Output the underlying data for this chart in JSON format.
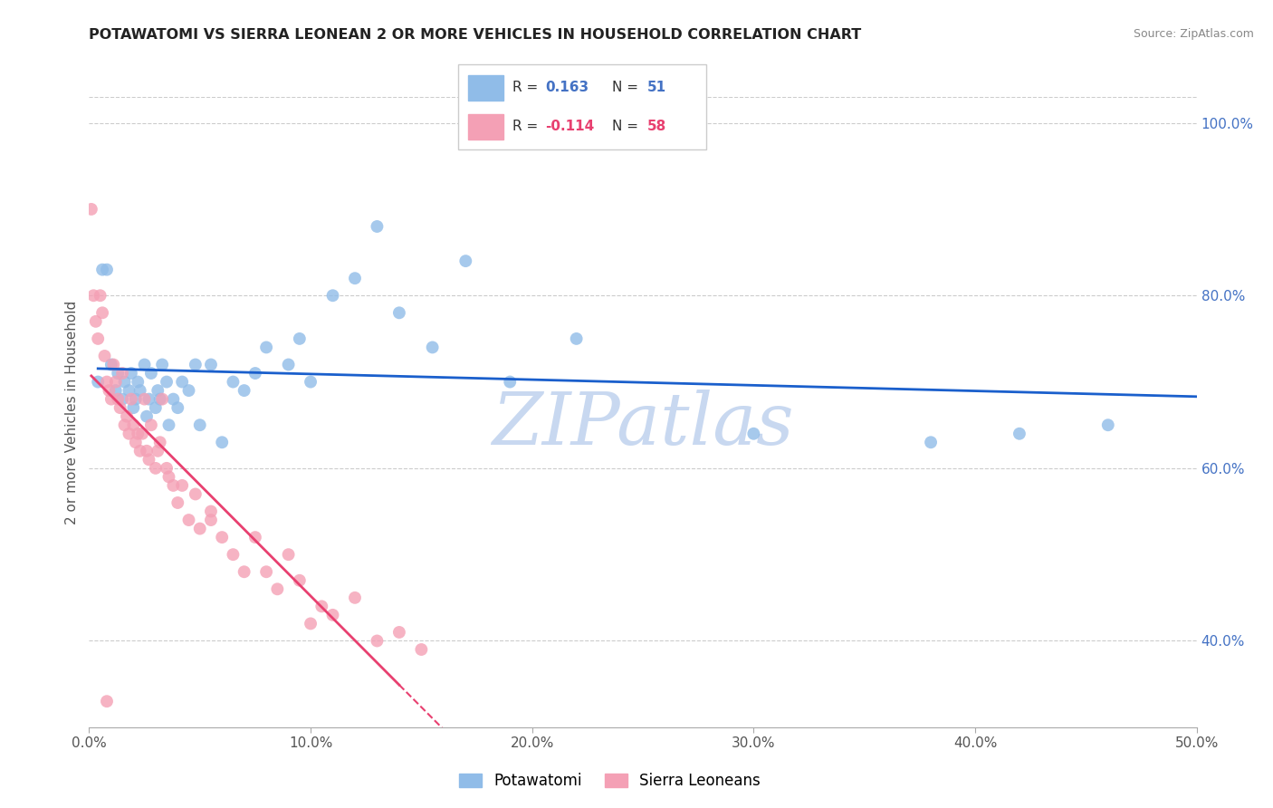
{
  "title": "POTAWATOMI VS SIERRA LEONEAN 2 OR MORE VEHICLES IN HOUSEHOLD CORRELATION CHART",
  "source": "Source: ZipAtlas.com",
  "ylabel": "2 or more Vehicles in Household",
  "xlim": [
    0.0,
    0.5
  ],
  "ylim": [
    0.3,
    1.03
  ],
  "xticks": [
    0.0,
    0.1,
    0.2,
    0.3,
    0.4,
    0.5
  ],
  "xticklabels": [
    "0.0%",
    "10.0%",
    "20.0%",
    "30.0%",
    "40.0%",
    "50.0%"
  ],
  "yticks_right": [
    0.4,
    0.6,
    0.8,
    1.0
  ],
  "yticklabels_right": [
    "40.0%",
    "60.0%",
    "80.0%",
    "100.0%"
  ],
  "legend1_r": "0.163",
  "legend1_n": "51",
  "legend2_r": "-0.114",
  "legend2_n": "58",
  "blue_color": "#90bce8",
  "pink_color": "#f4a0b5",
  "trend_blue": "#1a5fcc",
  "trend_pink": "#e84070",
  "watermark": "ZIPatlas",
  "watermark_color": "#c8d8f0",
  "blue_scatter_x": [
    0.004,
    0.006,
    0.008,
    0.01,
    0.012,
    0.013,
    0.015,
    0.016,
    0.018,
    0.019,
    0.02,
    0.021,
    0.022,
    0.023,
    0.025,
    0.026,
    0.027,
    0.028,
    0.03,
    0.031,
    0.032,
    0.033,
    0.035,
    0.036,
    0.038,
    0.04,
    0.042,
    0.045,
    0.048,
    0.05,
    0.055,
    0.06,
    0.065,
    0.07,
    0.075,
    0.08,
    0.09,
    0.095,
    0.1,
    0.11,
    0.12,
    0.13,
    0.14,
    0.155,
    0.17,
    0.19,
    0.22,
    0.3,
    0.38,
    0.42,
    0.46
  ],
  "blue_scatter_y": [
    0.7,
    0.83,
    0.83,
    0.72,
    0.69,
    0.71,
    0.68,
    0.7,
    0.69,
    0.71,
    0.67,
    0.68,
    0.7,
    0.69,
    0.72,
    0.66,
    0.68,
    0.71,
    0.67,
    0.69,
    0.68,
    0.72,
    0.7,
    0.65,
    0.68,
    0.67,
    0.7,
    0.69,
    0.72,
    0.65,
    0.72,
    0.63,
    0.7,
    0.69,
    0.71,
    0.74,
    0.72,
    0.75,
    0.7,
    0.8,
    0.82,
    0.88,
    0.78,
    0.74,
    0.84,
    0.7,
    0.75,
    0.64,
    0.63,
    0.64,
    0.65
  ],
  "pink_scatter_x": [
    0.001,
    0.002,
    0.003,
    0.004,
    0.005,
    0.006,
    0.007,
    0.008,
    0.009,
    0.01,
    0.011,
    0.012,
    0.013,
    0.014,
    0.015,
    0.016,
    0.017,
    0.018,
    0.019,
    0.02,
    0.021,
    0.022,
    0.023,
    0.024,
    0.025,
    0.026,
    0.027,
    0.028,
    0.03,
    0.031,
    0.032,
    0.033,
    0.035,
    0.036,
    0.038,
    0.04,
    0.042,
    0.045,
    0.048,
    0.05,
    0.055,
    0.06,
    0.065,
    0.07,
    0.075,
    0.08,
    0.085,
    0.09,
    0.095,
    0.1,
    0.105,
    0.11,
    0.12,
    0.13,
    0.14,
    0.15,
    0.055,
    0.008
  ],
  "pink_scatter_y": [
    0.9,
    0.8,
    0.77,
    0.75,
    0.8,
    0.78,
    0.73,
    0.7,
    0.69,
    0.68,
    0.72,
    0.7,
    0.68,
    0.67,
    0.71,
    0.65,
    0.66,
    0.64,
    0.68,
    0.65,
    0.63,
    0.64,
    0.62,
    0.64,
    0.68,
    0.62,
    0.61,
    0.65,
    0.6,
    0.62,
    0.63,
    0.68,
    0.6,
    0.59,
    0.58,
    0.56,
    0.58,
    0.54,
    0.57,
    0.53,
    0.54,
    0.52,
    0.5,
    0.48,
    0.52,
    0.48,
    0.46,
    0.5,
    0.47,
    0.42,
    0.44,
    0.43,
    0.45,
    0.4,
    0.41,
    0.39,
    0.55,
    0.33
  ]
}
